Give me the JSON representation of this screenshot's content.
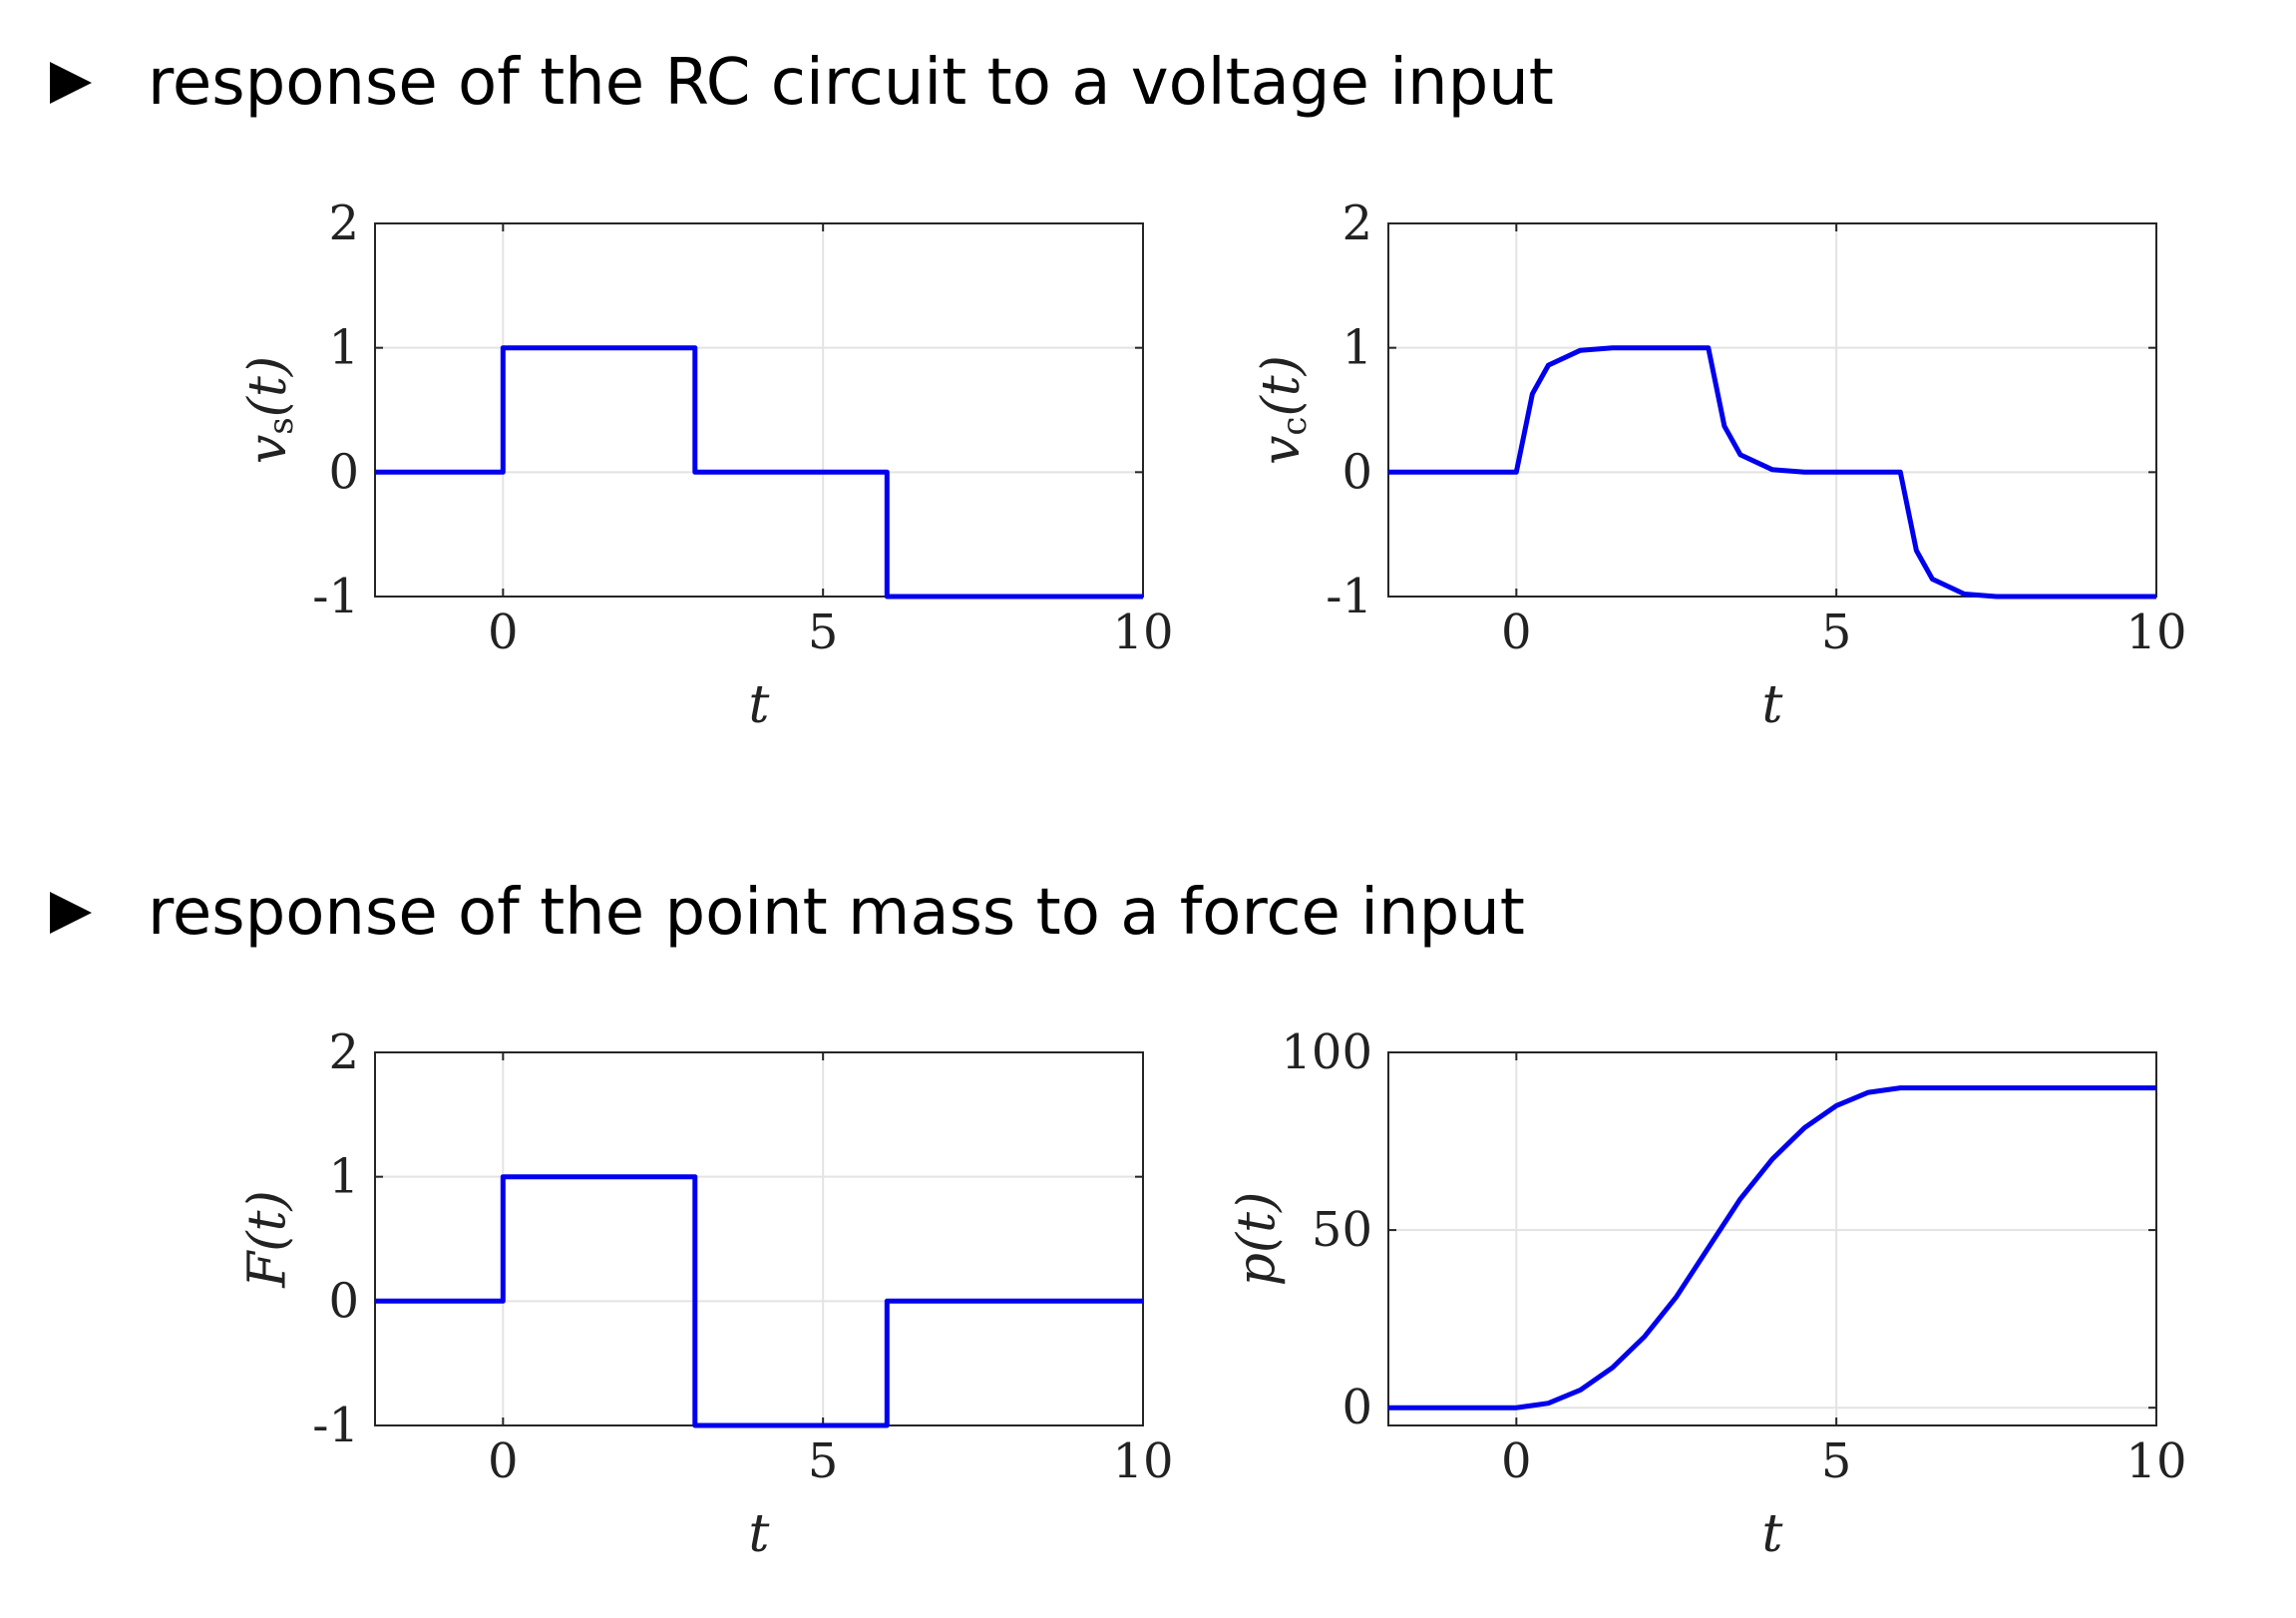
{
  "bullets": [
    {
      "text": "response of the RC circuit to a voltage input"
    },
    {
      "text": "response of the point mass to a force input"
    }
  ],
  "colors": {
    "line": "#0000ee",
    "grid": "#e3e3e3",
    "axis": "#262626"
  },
  "chart_data": [
    {
      "type": "line",
      "xlabel": "t",
      "ylabel": "v_s(t)",
      "xlim": [
        -2,
        10
      ],
      "ylim": [
        -1,
        2
      ],
      "xticks": [
        0,
        5,
        10
      ],
      "yticks": [
        -1,
        0,
        1,
        2
      ],
      "xtick_labels": [
        "0",
        "5",
        "10"
      ],
      "ytick_labels": [
        "-1",
        "0",
        "1",
        "2"
      ],
      "grid": true,
      "series": [
        {
          "x": [
            -2,
            0,
            0,
            3,
            3,
            6,
            6,
            10
          ],
          "y": [
            0,
            0,
            1,
            1,
            0,
            0,
            -1,
            -1
          ]
        }
      ]
    },
    {
      "type": "line",
      "xlabel": "t",
      "ylabel": "v_c(t)",
      "xlim": [
        -2,
        10
      ],
      "ylim": [
        -1,
        2
      ],
      "xticks": [
        0,
        5,
        10
      ],
      "yticks": [
        -1,
        0,
        1,
        2
      ],
      "xtick_labels": [
        "0",
        "5",
        "10"
      ],
      "ytick_labels": [
        "-1",
        "0",
        "1",
        "2"
      ],
      "grid": true,
      "series": [
        {
          "x": [
            -2,
            0,
            0.25,
            0.5,
            1,
            1.5,
            2,
            3,
            3.25,
            3.5,
            4,
            4.5,
            5,
            6,
            6.25,
            6.5,
            7,
            7.5,
            8,
            10
          ],
          "y": [
            0,
            0,
            0.63,
            0.86,
            0.98,
            1.0,
            1.0,
            1.0,
            0.37,
            0.14,
            0.02,
            0.0,
            0.0,
            0.0,
            -0.63,
            -0.86,
            -0.98,
            -1.0,
            -1.0,
            -1.0
          ]
        }
      ]
    },
    {
      "type": "line",
      "xlabel": "t",
      "ylabel": "F(t)",
      "xlim": [
        -2,
        10
      ],
      "ylim": [
        -1,
        2
      ],
      "xticks": [
        0,
        5,
        10
      ],
      "yticks": [
        -1,
        0,
        1,
        2
      ],
      "xtick_labels": [
        "0",
        "5",
        "10"
      ],
      "ytick_labels": [
        "-1",
        "0",
        "1",
        "2"
      ],
      "grid": true,
      "series": [
        {
          "x": [
            -2,
            0,
            0,
            3,
            3,
            6,
            6,
            10
          ],
          "y": [
            0,
            0,
            1,
            1,
            -1,
            -1,
            0,
            0
          ]
        }
      ]
    },
    {
      "type": "line",
      "xlabel": "t",
      "ylabel": "p(t)",
      "xlim": [
        -2,
        10
      ],
      "ylim": [
        -5,
        100
      ],
      "xticks": [
        0,
        5,
        10
      ],
      "yticks": [
        0,
        50,
        100
      ],
      "xtick_labels": [
        "0",
        "5",
        "10"
      ],
      "ytick_labels": [
        "0",
        "50",
        "100"
      ],
      "grid": true,
      "series": [
        {
          "x": [
            -2,
            0,
            0.5,
            1,
            1.5,
            2,
            2.5,
            3,
            3.5,
            4,
            4.5,
            5,
            5.5,
            6,
            10
          ],
          "y": [
            0,
            0,
            1.25,
            5,
            11.25,
            20,
            31.25,
            45,
            58.75,
            70,
            78.75,
            85,
            88.75,
            90,
            90
          ]
        }
      ]
    }
  ]
}
